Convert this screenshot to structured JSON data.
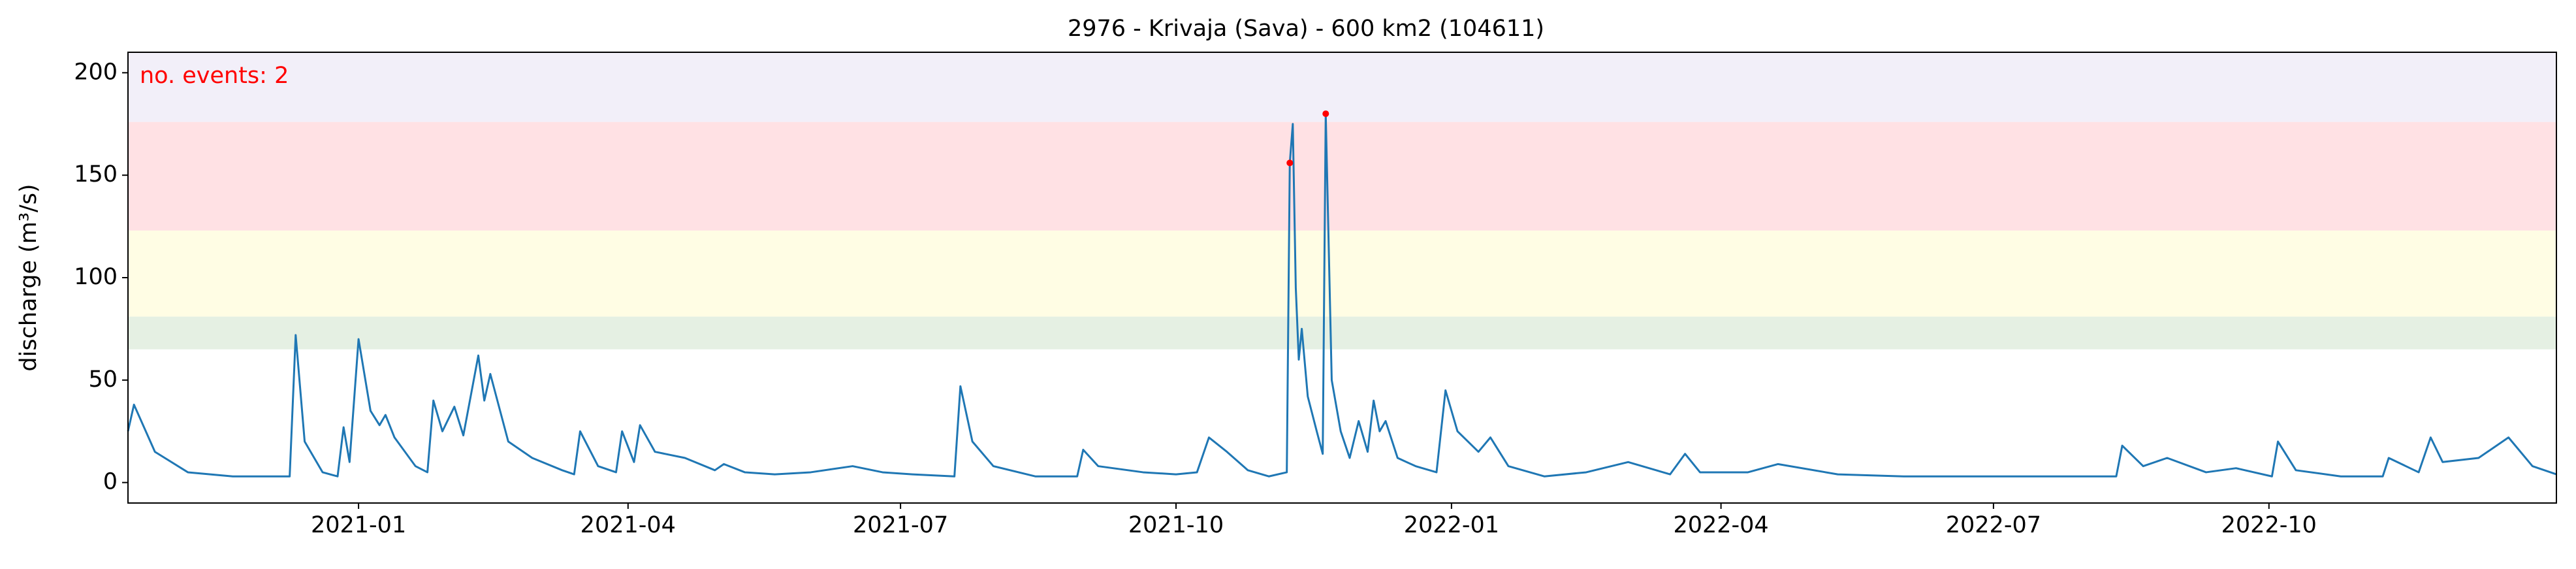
{
  "chart_data": {
    "type": "line",
    "title": "2976 - Krivaja (Sava) - 600 km2 (104611)",
    "y_label": "discharge (m³/s)",
    "annotation": "no. events: 2",
    "annotation_color": "#ff0000",
    "xlim": [
      "2020-10-16",
      "2023-01-05"
    ],
    "xticks": [
      {
        "value": "2021-01-01",
        "label": "2021-01"
      },
      {
        "value": "2021-04-01",
        "label": "2021-04"
      },
      {
        "value": "2021-07-01",
        "label": "2021-07"
      },
      {
        "value": "2021-10-01",
        "label": "2021-10"
      },
      {
        "value": "2022-01-01",
        "label": "2022-01"
      },
      {
        "value": "2022-04-01",
        "label": "2022-04"
      },
      {
        "value": "2022-07-01",
        "label": "2022-07"
      },
      {
        "value": "2022-10-01",
        "label": "2022-10"
      }
    ],
    "ylim": [
      -10,
      210
    ],
    "yticks": [
      0,
      50,
      100,
      150,
      200
    ],
    "bands": [
      {
        "low": 65,
        "high": 81,
        "color": "#e5f0e3"
      },
      {
        "low": 81,
        "high": 123,
        "color": "#fffde4"
      },
      {
        "low": 123,
        "high": 176,
        "color": "#ffe1e4"
      },
      {
        "low": 176,
        "high": 210,
        "color": "#f2eff9"
      }
    ],
    "series": [
      {
        "color": "#1f77b4",
        "x": [
          "2020-10-16",
          "2020-10-18",
          "2020-10-25",
          "2020-11-05",
          "2020-11-20",
          "2020-12-09",
          "2020-12-11",
          "2020-12-14",
          "2020-12-20",
          "2020-12-25",
          "2020-12-27",
          "2020-12-29",
          "2021-01-01",
          "2021-01-05",
          "2021-01-08",
          "2021-01-10",
          "2021-01-13",
          "2021-01-20",
          "2021-01-24",
          "2021-01-26",
          "2021-01-29",
          "2021-02-02",
          "2021-02-05",
          "2021-02-10",
          "2021-02-12",
          "2021-02-14",
          "2021-02-20",
          "2021-02-28",
          "2021-03-10",
          "2021-03-14",
          "2021-03-16",
          "2021-03-22",
          "2021-03-28",
          "2021-03-30",
          "2021-04-03",
          "2021-04-05",
          "2021-04-10",
          "2021-04-20",
          "2021-04-30",
          "2021-05-03",
          "2021-05-10",
          "2021-05-20",
          "2021-06-01",
          "2021-06-15",
          "2021-06-25",
          "2021-07-05",
          "2021-07-19",
          "2021-07-21",
          "2021-07-25",
          "2021-08-01",
          "2021-08-15",
          "2021-08-29",
          "2021-08-31",
          "2021-09-05",
          "2021-09-20",
          "2021-10-01",
          "2021-10-08",
          "2021-10-12",
          "2021-10-18",
          "2021-10-25",
          "2021-11-01",
          "2021-11-07",
          "2021-11-08",
          "2021-11-09",
          "2021-11-10",
          "2021-11-11",
          "2021-11-12",
          "2021-11-14",
          "2021-11-17",
          "2021-11-19",
          "2021-11-20",
          "2021-11-22",
          "2021-11-25",
          "2021-11-28",
          "2021-12-01",
          "2021-12-04",
          "2021-12-06",
          "2021-12-08",
          "2021-12-10",
          "2021-12-14",
          "2021-12-20",
          "2021-12-27",
          "2021-12-30",
          "2022-01-03",
          "2022-01-10",
          "2022-01-14",
          "2022-01-20",
          "2022-02-01",
          "2022-02-15",
          "2022-03-01",
          "2022-03-15",
          "2022-03-20",
          "2022-03-25",
          "2022-04-10",
          "2022-04-20",
          "2022-05-10",
          "2022-06-01",
          "2022-07-01",
          "2022-08-11",
          "2022-08-13",
          "2022-08-20",
          "2022-08-28",
          "2022-09-10",
          "2022-09-20",
          "2022-10-02",
          "2022-10-04",
          "2022-10-10",
          "2022-10-25",
          "2022-11-08",
          "2022-11-10",
          "2022-11-20",
          "2022-11-24",
          "2022-11-28",
          "2022-12-10",
          "2022-12-20",
          "2022-12-28",
          "2023-01-05"
        ],
        "values": [
          25,
          38,
          15,
          5,
          3,
          3,
          72,
          20,
          5,
          3,
          27,
          10,
          70,
          35,
          28,
          33,
          22,
          8,
          5,
          40,
          25,
          37,
          23,
          62,
          40,
          53,
          20,
          12,
          6,
          4,
          25,
          8,
          5,
          25,
          10,
          28,
          15,
          12,
          6,
          9,
          5,
          4,
          5,
          8,
          5,
          4,
          3,
          47,
          20,
          8,
          3,
          3,
          16,
          8,
          5,
          4,
          5,
          22,
          15,
          6,
          3,
          5,
          156,
          175,
          95,
          60,
          75,
          42,
          25,
          14,
          180,
          50,
          25,
          12,
          30,
          15,
          40,
          25,
          30,
          12,
          8,
          5,
          45,
          25,
          15,
          22,
          8,
          3,
          5,
          10,
          4,
          14,
          5,
          5,
          9,
          4,
          3,
          3,
          3,
          18,
          8,
          12,
          5,
          7,
          3,
          20,
          6,
          3,
          3,
          12,
          5,
          22,
          10,
          12,
          22,
          8,
          4
        ]
      }
    ],
    "events": {
      "color": "#ff0000",
      "x": [
        "2021-11-08",
        "2021-11-20"
      ],
      "values": [
        156,
        180
      ]
    }
  }
}
